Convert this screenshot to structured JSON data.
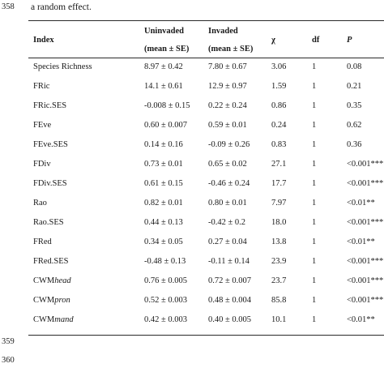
{
  "line_numbers": [
    "358",
    "359",
    "360"
  ],
  "caption_fragment": "a random effect.",
  "table": {
    "headers": {
      "index": "Index",
      "uninvaded_line1": "Uninvaded",
      "uninvaded_line2": "(mean ± SE)",
      "invaded_line1": "Invaded",
      "invaded_line2": "(mean ± SE)",
      "chi": "χ",
      "df": "df",
      "p": "P"
    },
    "rows": [
      {
        "index": "Species Richness",
        "index_prefix": "",
        "index_suffix": "",
        "uninvaded": "8.97 ± 0.42",
        "invaded": "7.80 ± 0.67",
        "chi": "3.06",
        "df": "1",
        "p": "0.08"
      },
      {
        "index": "FRic",
        "index_prefix": "",
        "index_suffix": "",
        "uninvaded": "14.1 ± 0.61",
        "invaded": "12.9 ± 0.97",
        "chi": "1.59",
        "df": "1",
        "p": "0.21"
      },
      {
        "index": "FRic.SES",
        "index_prefix": "",
        "index_suffix": "",
        "uninvaded": "-0.008 ± 0.15",
        "invaded": "0.22 ± 0.24",
        "chi": "0.86",
        "df": "1",
        "p": "0.35"
      },
      {
        "index": "FEve",
        "index_prefix": "",
        "index_suffix": "",
        "uninvaded": "0.60 ± 0.007",
        "invaded": "0.59 ± 0.01",
        "chi": "0.24",
        "df": "1",
        "p": "0.62"
      },
      {
        "index": "FEve.SES",
        "index_prefix": "",
        "index_suffix": "",
        "uninvaded": "0.14 ± 0.16",
        "invaded": "-0.09 ± 0.26",
        "chi": "0.83",
        "df": "1",
        "p": "0.36"
      },
      {
        "index": "FDiv",
        "index_prefix": "",
        "index_suffix": "",
        "uninvaded": "0.73 ± 0.01",
        "invaded": "0.65 ± 0.02",
        "chi": "27.1",
        "df": "1",
        "p": "<0.001***"
      },
      {
        "index": "FDiv.SES",
        "index_prefix": "",
        "index_suffix": "",
        "uninvaded": "0.61 ± 0.15",
        "invaded": "-0.46 ± 0.24",
        "chi": "17.7",
        "df": "1",
        "p": "<0.001***"
      },
      {
        "index": "Rao",
        "index_prefix": "",
        "index_suffix": "",
        "uninvaded": "0.82 ± 0.01",
        "invaded": "0.80 ± 0.01",
        "chi": "7.97",
        "df": "1",
        "p": "<0.01**"
      },
      {
        "index": "Rao.SES",
        "index_prefix": "",
        "index_suffix": "",
        "uninvaded": "0.44 ± 0.13",
        "invaded": "-0.42 ± 0.2",
        "chi": "18.0",
        "df": "1",
        "p": "<0.001***"
      },
      {
        "index": "FRed",
        "index_prefix": "",
        "index_suffix": "",
        "uninvaded": "0.34 ± 0.05",
        "invaded": "0.27 ± 0.04",
        "chi": "13.8",
        "df": "1",
        "p": "<0.01**"
      },
      {
        "index": "FRed.SES",
        "index_prefix": "",
        "index_suffix": "",
        "uninvaded": "-0.48 ± 0.13",
        "invaded": "-0.11 ± 0.14",
        "chi": "23.9",
        "df": "1",
        "p": "<0.001***"
      },
      {
        "index": "",
        "index_prefix": "CWM",
        "index_suffix": "head",
        "uninvaded": "0.76 ± 0.005",
        "invaded": "0.72 ± 0.007",
        "chi": "23.7",
        "df": "1",
        "p": "<0.001***"
      },
      {
        "index": "",
        "index_prefix": "CWM",
        "index_suffix": "pron",
        "uninvaded": "0.52 ± 0.003",
        "invaded": "0.48 ± 0.004",
        "chi": "85.8",
        "df": "1",
        "p": "<0.001***"
      },
      {
        "index": "",
        "index_prefix": "CWM",
        "index_suffix": "mand",
        "uninvaded": "0.42 ± 0.003",
        "invaded": "0.40 ± 0.005",
        "chi": "10.1",
        "df": "1",
        "p": "<0.01**"
      }
    ]
  }
}
